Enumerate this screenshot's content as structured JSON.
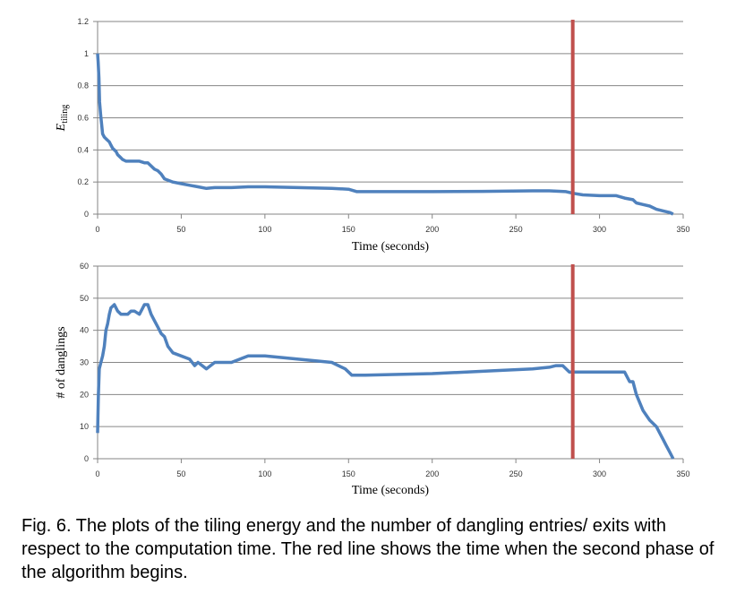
{
  "chart_data": [
    {
      "type": "line",
      "title": "",
      "xlabel": "Time (seconds)",
      "ylabel_main": "E",
      "ylabel_sub": "tiling",
      "xlim": [
        0,
        350
      ],
      "ylim": [
        0,
        1.2
      ],
      "x_ticks": [
        0,
        50,
        100,
        150,
        200,
        250,
        300,
        350
      ],
      "y_ticks": [
        0,
        0.2,
        0.4,
        0.6,
        0.8,
        1,
        1.2
      ],
      "y_tick_labels": [
        "0",
        "0.2",
        "0.4",
        "0.6",
        "0.8",
        "1",
        "1.2"
      ],
      "grid": true,
      "series_color": "#4f81bd",
      "marker_line": {
        "x": 284,
        "color": "#c0504d"
      },
      "series": [
        {
          "x": [
            0,
            0.3,
            0.8,
            1.2,
            1.8,
            2.5,
            3,
            4,
            5,
            6,
            7,
            8,
            9,
            10,
            11,
            12,
            14,
            15,
            17,
            20,
            22,
            25,
            28,
            30,
            32,
            34,
            36,
            38,
            40,
            45,
            50,
            55,
            60,
            65,
            70,
            80,
            90,
            100,
            120,
            140,
            150,
            155,
            160,
            180,
            200,
            230,
            260,
            270,
            280,
            284,
            290,
            300,
            310,
            315,
            320,
            322,
            326,
            330,
            334,
            338,
            340,
            342,
            344
          ],
          "y": [
            1.0,
            0.95,
            0.85,
            0.7,
            0.62,
            0.55,
            0.5,
            0.48,
            0.47,
            0.46,
            0.45,
            0.43,
            0.41,
            0.4,
            0.39,
            0.37,
            0.35,
            0.34,
            0.33,
            0.33,
            0.33,
            0.33,
            0.32,
            0.32,
            0.3,
            0.28,
            0.27,
            0.25,
            0.22,
            0.2,
            0.19,
            0.18,
            0.17,
            0.16,
            0.165,
            0.165,
            0.17,
            0.17,
            0.165,
            0.16,
            0.155,
            0.14,
            0.14,
            0.14,
            0.14,
            0.142,
            0.145,
            0.145,
            0.14,
            0.13,
            0.12,
            0.115,
            0.115,
            0.1,
            0.09,
            0.07,
            0.06,
            0.05,
            0.03,
            0.02,
            0.015,
            0.01,
            0.0
          ]
        }
      ]
    },
    {
      "type": "line",
      "title": "",
      "xlabel": "Time (seconds)",
      "ylabel": "# of danglings",
      "xlim": [
        0,
        350
      ],
      "ylim": [
        0,
        60
      ],
      "x_ticks": [
        0,
        50,
        100,
        150,
        200,
        250,
        300,
        350
      ],
      "y_ticks": [
        0,
        10,
        20,
        30,
        40,
        50,
        60
      ],
      "y_tick_labels": [
        "0",
        "10",
        "20",
        "30",
        "40",
        "50",
        "60"
      ],
      "grid": true,
      "series_color": "#4f81bd",
      "marker_line": {
        "x": 284,
        "color": "#c0504d"
      },
      "series": [
        {
          "x": [
            0,
            0.5,
            1,
            2,
            3,
            4,
            5,
            6,
            7,
            8,
            10,
            12,
            14,
            16,
            18,
            20,
            22,
            25,
            27,
            28,
            30,
            32,
            34,
            36,
            38,
            40,
            42,
            45,
            50,
            55,
            58,
            60,
            65,
            70,
            80,
            85,
            90,
            100,
            120,
            140,
            148,
            152,
            160,
            200,
            240,
            260,
            270,
            274,
            278,
            282,
            285,
            300,
            314,
            315,
            318,
            320,
            322,
            326,
            330,
            334,
            336,
            338,
            340,
            342,
            344
          ],
          "y": [
            8,
            20,
            28,
            30,
            32,
            35,
            40,
            42,
            45,
            47,
            48,
            46,
            45,
            45,
            45,
            46,
            46,
            45,
            47,
            48,
            48,
            45,
            43,
            41,
            39,
            38,
            35,
            33,
            32,
            31,
            29,
            30,
            28,
            30,
            30,
            31,
            32,
            32,
            31,
            30,
            28,
            26,
            26,
            26.5,
            27.5,
            28,
            28.5,
            29,
            29,
            27,
            27,
            27,
            27,
            27,
            24,
            24,
            20,
            15,
            12,
            10,
            8,
            6,
            4,
            2,
            0
          ]
        }
      ]
    }
  ],
  "caption": "Fig. 6. The plots of the tiling energy and the number of dangling entries/ exits with respect to the computation time. The red line shows the time when the second phase of the algorithm begins."
}
